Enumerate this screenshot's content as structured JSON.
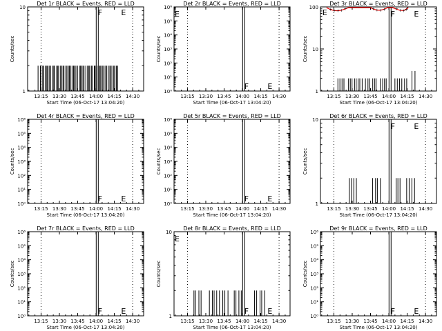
{
  "figure": {
    "xlabel": "Start Time (06-Oct-17 13:04:20)",
    "ylabel": "Counts/sec",
    "x_tick_labels": [
      "13:15",
      "13:30",
      "13:45",
      "14:00",
      "14:15",
      "14:30"
    ],
    "colors": {
      "events": "#000000",
      "lld": "#ff0000",
      "frame": "#000000",
      "background": "#ffffff"
    }
  },
  "chart_data": [
    {
      "type": "line",
      "title": "Det 1r BLACK = Events, RED = LLD",
      "xlabel": "Start Time (06-Oct-17 13:04:20)",
      "ylabel": "Counts/sec",
      "y_scale": "log",
      "ylim": [
        1,
        10
      ],
      "y_ticks": [
        {
          "value": 1,
          "label": "1"
        },
        {
          "value": 10,
          "label": "10"
        }
      ],
      "x_ticks": [
        "13:15",
        "13:30",
        "13:45",
        "14:00",
        "14:15",
        "14:30"
      ],
      "markers": [
        {
          "text": "F",
          "time": "14:01"
        },
        {
          "text": "E",
          "time": "14:20"
        }
      ],
      "series": [
        {
          "color": "#000000",
          "style": "spikes",
          "spikes": [
            {
              "start": "13:13",
              "end": "14:18",
              "level": 2,
              "count": 60
            }
          ]
        }
      ]
    },
    {
      "type": "line",
      "title": "Det 2r BLACK = Events, RED = LLD",
      "xlabel": "Start Time (06-Oct-17 13:04:20)",
      "ylabel": "Counts/sec",
      "y_scale": "log",
      "ylim": [
        1,
        1000000
      ],
      "y_ticks": [
        {
          "value": 1,
          "label": "10⁰"
        },
        {
          "value": 10,
          "label": "10¹"
        },
        {
          "value": 100,
          "label": "10²"
        },
        {
          "value": 1000,
          "label": "10³"
        },
        {
          "value": 10000,
          "label": "10⁴"
        },
        {
          "value": 100000,
          "label": "10⁵"
        },
        {
          "value": 1000000,
          "label": "10⁶"
        }
      ],
      "x_ticks": [
        "13:15",
        "13:30",
        "13:45",
        "14:00",
        "14:15",
        "14:30"
      ],
      "markers": [
        {
          "text": "E",
          "time": "13:04"
        },
        {
          "text": "F",
          "time": "14:01"
        },
        {
          "text": "E",
          "time": "14:20"
        }
      ],
      "series": []
    },
    {
      "type": "line",
      "title": "Det 3r BLACK = Events, RED = LLD",
      "xlabel": "Start Time (06-Oct-17 13:04:20)",
      "ylabel": "Counts/sec",
      "y_scale": "log",
      "ylim": [
        1,
        100
      ],
      "y_ticks": [
        {
          "value": 1,
          "label": "1"
        },
        {
          "value": 10,
          "label": "10"
        },
        {
          "value": 100,
          "label": "100"
        }
      ],
      "x_ticks": [
        "13:15",
        "13:30",
        "13:45",
        "14:00",
        "14:15",
        "14:30"
      ],
      "markers": [
        {
          "text": "E",
          "time": "13:05"
        },
        {
          "text": "F",
          "time": "14:01"
        },
        {
          "text": "E",
          "time": "14:20"
        }
      ],
      "series": [
        {
          "color": "#000000",
          "style": "spikes",
          "spikes": [
            {
              "start": "13:18",
              "end": "13:23",
              "level": 2,
              "count": 4
            },
            {
              "start": "13:27",
              "end": "13:38",
              "level": 2,
              "count": 8
            },
            {
              "start": "13:41",
              "end": "13:50",
              "level": 2,
              "count": 6
            },
            {
              "start": "13:53",
              "end": "13:58",
              "level": 2,
              "count": 4
            },
            {
              "start": "14:05",
              "end": "14:15",
              "level": 2,
              "count": 6
            },
            {
              "start": "14:19",
              "end": "14:21",
              "level": 3,
              "count": 2
            }
          ]
        },
        {
          "color": "#ff0000",
          "style": "line",
          "points": [
            [
              "13:09",
              96
            ],
            [
              "13:12",
              87
            ],
            [
              "13:15",
              82
            ],
            [
              "13:18",
              81
            ],
            [
              "13:21",
              83
            ],
            [
              "13:24",
              89
            ],
            [
              "13:27",
              96
            ],
            [
              "13:45",
              96
            ],
            [
              "13:47",
              90
            ],
            [
              "13:50",
              84
            ],
            [
              "13:53",
              83
            ],
            [
              "13:56",
              88
            ],
            [
              "13:59",
              96
            ],
            [
              "14:03",
              96
            ],
            [
              "14:06",
              89
            ],
            [
              "14:09",
              83
            ],
            [
              "14:12",
              82
            ],
            [
              "14:14",
              87
            ],
            [
              "14:16",
              96
            ]
          ]
        }
      ]
    },
    {
      "type": "line",
      "title": "Det 4r BLACK = Events, RED = LLD",
      "xlabel": "Start Time (06-Oct-17 13:04:20)",
      "ylabel": "Counts/sec",
      "y_scale": "log",
      "ylim": [
        1,
        1000000
      ],
      "y_ticks": [
        {
          "value": 1,
          "label": "10⁰"
        },
        {
          "value": 10,
          "label": "10¹"
        },
        {
          "value": 100,
          "label": "10²"
        },
        {
          "value": 1000,
          "label": "10³"
        },
        {
          "value": 10000,
          "label": "10⁴"
        },
        {
          "value": 100000,
          "label": "10⁵"
        },
        {
          "value": 1000000,
          "label": "10⁶"
        }
      ],
      "x_ticks": [
        "13:15",
        "13:30",
        "13:45",
        "14:00",
        "14:15",
        "14:30"
      ],
      "markers": [
        {
          "text": "F",
          "time": "14:01"
        },
        {
          "text": "E",
          "time": "14:20"
        }
      ],
      "series": []
    },
    {
      "type": "line",
      "title": "Det 5r BLACK = Events, RED = LLD",
      "xlabel": "Start Time (06-Oct-17 13:04:20)",
      "ylabel": "Counts/sec",
      "y_scale": "log",
      "ylim": [
        1,
        1000000
      ],
      "y_ticks": [
        {
          "value": 1,
          "label": "10⁰"
        },
        {
          "value": 10,
          "label": "10¹"
        },
        {
          "value": 100,
          "label": "10²"
        },
        {
          "value": 1000,
          "label": "10³"
        },
        {
          "value": 10000,
          "label": "10⁴"
        },
        {
          "value": 100000,
          "label": "10⁵"
        },
        {
          "value": 1000000,
          "label": "10⁶"
        }
      ],
      "x_ticks": [
        "13:15",
        "13:30",
        "13:45",
        "14:00",
        "14:15",
        "14:30"
      ],
      "markers": [
        {
          "text": "F",
          "time": "14:01"
        },
        {
          "text": "E",
          "time": "14:20"
        }
      ],
      "series": []
    },
    {
      "type": "line",
      "title": "Det 6r BLACK = Events, RED = LLD",
      "xlabel": "Start Time (06-Oct-17 13:04:20)",
      "ylabel": "Counts/sec",
      "y_scale": "log",
      "ylim": [
        1,
        10
      ],
      "y_ticks": [
        {
          "value": 1,
          "label": "1"
        },
        {
          "value": 10,
          "label": "10"
        }
      ],
      "x_ticks": [
        "13:15",
        "13:30",
        "13:45",
        "14:00",
        "14:15",
        "14:30"
      ],
      "markers": [
        {
          "text": "F",
          "time": "14:01"
        },
        {
          "text": "E",
          "time": "14:20"
        }
      ],
      "series": [
        {
          "color": "#000000",
          "style": "spikes",
          "spikes": [
            {
              "start": "13:28",
              "end": "13:33",
              "level": 2,
              "count": 4
            },
            {
              "start": "13:47",
              "end": "13:53",
              "level": 2,
              "count": 4
            },
            {
              "start": "14:06",
              "end": "14:09",
              "level": 2,
              "count": 3
            },
            {
              "start": "14:15",
              "end": "14:21",
              "level": 2,
              "count": 4
            }
          ]
        }
      ]
    },
    {
      "type": "line",
      "title": "Det 7r BLACK = Events, RED = LLD",
      "xlabel": "Start Time (06-Oct-17 13:04:20)",
      "ylabel": "Counts/sec",
      "y_scale": "log",
      "ylim": [
        1,
        1000000
      ],
      "y_ticks": [
        {
          "value": 1,
          "label": "10⁰"
        },
        {
          "value": 10,
          "label": "10¹"
        },
        {
          "value": 100,
          "label": "10²"
        },
        {
          "value": 1000,
          "label": "10³"
        },
        {
          "value": 10000,
          "label": "10⁴"
        },
        {
          "value": 100000,
          "label": "10⁵"
        },
        {
          "value": 1000000,
          "label": "10⁶"
        }
      ],
      "x_ticks": [
        "13:15",
        "13:30",
        "13:45",
        "14:00",
        "14:15",
        "14:30"
      ],
      "markers": [
        {
          "text": "F",
          "time": "14:01"
        },
        {
          "text": "E",
          "time": "14:20"
        }
      ],
      "series": []
    },
    {
      "type": "line",
      "title": "Det 8r BLACK = Events, RED = LLD",
      "xlabel": "Start Time (06-Oct-17 13:04:20)",
      "ylabel": "Counts/sec",
      "y_scale": "log",
      "ylim": [
        1,
        10
      ],
      "y_ticks": [
        {
          "value": 1,
          "label": "1"
        },
        {
          "value": 10,
          "label": "10"
        }
      ],
      "x_ticks": [
        "13:15",
        "13:30",
        "13:45",
        "14:00",
        "14:15",
        "14:30"
      ],
      "markers": [
        {
          "text": "E",
          "time": "13:04"
        },
        {
          "text": "F",
          "time": "14:01"
        },
        {
          "text": "E",
          "time": "14:20"
        }
      ],
      "series": [
        {
          "color": "#000000",
          "style": "spikes",
          "spikes": [
            {
              "start": "13:20",
              "end": "13:26",
              "level": 2,
              "count": 4
            },
            {
              "start": "13:33",
              "end": "13:41",
              "level": 2,
              "count": 5
            },
            {
              "start": "13:44",
              "end": "13:48",
              "level": 2,
              "count": 3
            },
            {
              "start": "13:53",
              "end": "13:59",
              "level": 2,
              "count": 4
            },
            {
              "start": "14:10",
              "end": "14:18",
              "level": 2,
              "count": 5
            }
          ]
        }
      ]
    },
    {
      "type": "line",
      "title": "Det 9r BLACK = Events, RED = LLD",
      "xlabel": "Start Time (06-Oct-17 13:04:20)",
      "ylabel": "Counts/sec",
      "y_scale": "log",
      "ylim": [
        1,
        1000000
      ],
      "y_ticks": [
        {
          "value": 1,
          "label": "10⁰"
        },
        {
          "value": 10,
          "label": "10¹"
        },
        {
          "value": 100,
          "label": "10²"
        },
        {
          "value": 1000,
          "label": "10³"
        },
        {
          "value": 10000,
          "label": "10⁴"
        },
        {
          "value": 100000,
          "label": "10⁵"
        },
        {
          "value": 1000000,
          "label": "10⁶"
        }
      ],
      "x_ticks": [
        "13:15",
        "13:30",
        "13:45",
        "14:00",
        "14:15",
        "14:30"
      ],
      "markers": [
        {
          "text": "F",
          "time": "14:01"
        },
        {
          "text": "E",
          "time": "14:20"
        }
      ],
      "series": []
    }
  ]
}
